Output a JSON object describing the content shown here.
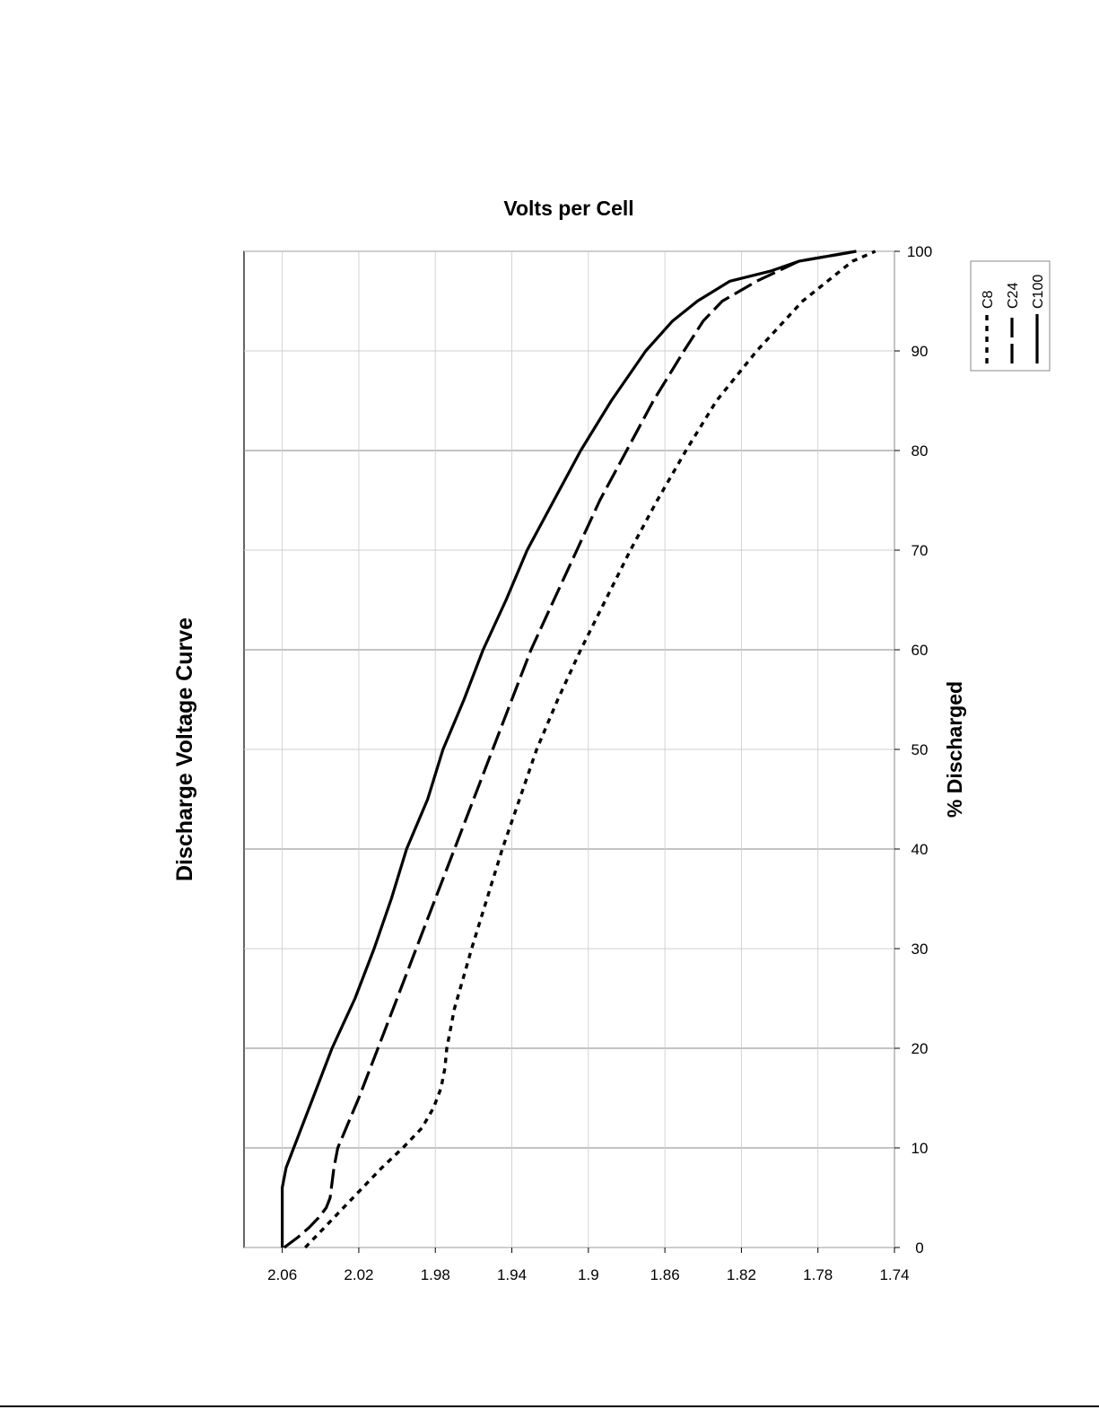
{
  "chart_data": {
    "type": "line",
    "title": "Discharge Voltage Curve",
    "xlabel": "% Discharged",
    "ylabel": "Volts per Cell",
    "xlim": [
      0,
      100
    ],
    "ylim": [
      1.74,
      2.08
    ],
    "xticks": [
      0,
      10,
      20,
      30,
      40,
      50,
      60,
      70,
      80,
      90,
      100
    ],
    "yticks": [
      "1.74",
      "1.78",
      "1.82",
      "1.86",
      "1.9",
      "1.94",
      "1.98",
      "2.02",
      "2.06"
    ],
    "grid": true,
    "orientation": "rotated 90 degrees counter-clockwise",
    "legend_position": "top-right",
    "series": [
      {
        "name": "C8",
        "style": "dotted",
        "x": [
          0,
          2,
          4,
          6,
          8,
          10,
          12,
          14,
          16,
          18,
          20,
          22,
          24,
          26,
          28,
          30,
          35,
          40,
          45,
          50,
          55,
          60,
          65,
          70,
          75,
          80,
          85,
          90,
          95,
          99,
          100
        ],
        "y": [
          2.048,
          2.038,
          2.028,
          2.018,
          2.008,
          1.997,
          1.987,
          1.981,
          1.977,
          1.975,
          1.974,
          1.972,
          1.97,
          1.967,
          1.964,
          1.961,
          1.953,
          1.945,
          1.936,
          1.927,
          1.916,
          1.904,
          1.891,
          1.878,
          1.864,
          1.849,
          1.833,
          1.812,
          1.788,
          1.762,
          1.75
        ]
      },
      {
        "name": "C24",
        "style": "dashed",
        "x": [
          0,
          1,
          2,
          3,
          4,
          5,
          8,
          10,
          15,
          20,
          25,
          30,
          35,
          40,
          45,
          50,
          55,
          60,
          65,
          70,
          75,
          80,
          85,
          90,
          93,
          95,
          97,
          99,
          100
        ],
        "y": [
          2.059,
          2.052,
          2.046,
          2.041,
          2.037,
          2.035,
          2.033,
          2.031,
          2.02,
          2.01,
          2.0,
          1.99,
          1.98,
          1.97,
          1.96,
          1.95,
          1.94,
          1.93,
          1.918,
          1.906,
          1.894,
          1.88,
          1.866,
          1.85,
          1.84,
          1.83,
          1.812,
          1.79,
          1.76
        ]
      },
      {
        "name": "C100",
        "style": "solid",
        "x": [
          0,
          1,
          2,
          4,
          6,
          8,
          10,
          15,
          20,
          25,
          30,
          35,
          40,
          45,
          50,
          55,
          60,
          65,
          70,
          75,
          80,
          85,
          90,
          93,
          95,
          97,
          98,
          99,
          100
        ],
        "y": [
          2.06,
          2.06,
          2.06,
          2.06,
          2.06,
          2.058,
          2.054,
          2.044,
          2.034,
          2.022,
          2.012,
          2.003,
          1.995,
          1.984,
          1.976,
          1.965,
          1.955,
          1.943,
          1.932,
          1.918,
          1.904,
          1.888,
          1.87,
          1.856,
          1.843,
          1.826,
          1.805,
          1.79,
          1.76
        ]
      }
    ]
  }
}
